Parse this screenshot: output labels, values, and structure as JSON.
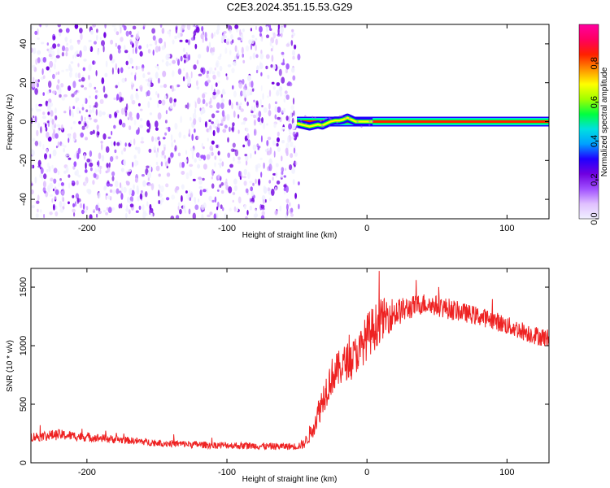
{
  "title": "C2E3.2024.351.15.53.G29",
  "colors": {
    "colormap": [
      "#f0f0ff",
      "#e0c0ff",
      "#a050ff",
      "#7000e0",
      "#2000ff",
      "#00a0ff",
      "#00e0e0",
      "#00ff40",
      "#a0ff00",
      "#ffff00",
      "#ff9000",
      "#ff2000",
      "#ff0060",
      "#ff00a0"
    ],
    "snr_line": "#ee2222",
    "frame": "#000000"
  },
  "chart_data": [
    {
      "type": "heatmap",
      "title": "",
      "xlabel": "Height of straight line (km)",
      "ylabel": "Frequency (Hz)",
      "xlim": [
        -240,
        130
      ],
      "ylim": [
        -50,
        50
      ],
      "x_ticks": [
        -200,
        -100,
        0,
        100
      ],
      "x_tick_labels": [
        "-200",
        "-100",
        "0",
        "100"
      ],
      "y_ticks": [
        -40,
        -20,
        0,
        20,
        40
      ],
      "y_tick_labels": [
        "-40",
        "-20",
        "0",
        "20",
        "40"
      ],
      "grid": false,
      "noise_region_x": [
        -240,
        -52
      ],
      "tone_frequency_hz": 0,
      "tone_start_x": -50,
      "track": {
        "x": [
          -50,
          -47,
          -44,
          -41,
          -38,
          -35,
          -32,
          -29,
          -26,
          -23,
          -20,
          -17,
          -14,
          -11,
          -8,
          -5,
          -2,
          1,
          4
        ],
        "y": [
          -1,
          -1.5,
          -2,
          -2.5,
          -2,
          -1.5,
          -2,
          -1,
          0,
          0.5,
          0.5,
          1,
          2,
          1,
          0,
          0,
          0,
          0,
          0
        ]
      },
      "colorbar": {
        "label": "Normalized spectral amplitude",
        "range": [
          0,
          1
        ],
        "ticks": [
          0.0,
          0.2,
          0.4,
          0.6,
          0.8
        ],
        "tick_labels": [
          "0.0",
          "0.2",
          "0.4",
          "0.6",
          "0.8"
        ]
      }
    },
    {
      "type": "line",
      "title": "",
      "xlabel": "Height of straight line (km)",
      "ylabel": "SNR (10 * v/v)",
      "xlim": [
        -240,
        130
      ],
      "ylim": [
        0,
        1660
      ],
      "x_ticks": [
        -200,
        -100,
        0,
        100
      ],
      "x_tick_labels": [
        "-200",
        "-100",
        "0",
        "100"
      ],
      "y_ticks": [
        0,
        500,
        1000,
        1500
      ],
      "y_tick_labels": [
        "0",
        "500",
        "1000",
        "1500"
      ],
      "grid": false,
      "series": [
        {
          "x": [
            -240,
            -230,
            -220,
            -210,
            -200,
            -190,
            -180,
            -170,
            -160,
            -150,
            -140,
            -130,
            -120,
            -110,
            -100,
            -90,
            -80,
            -70,
            -60,
            -50,
            -45,
            -40,
            -35,
            -30,
            -25,
            -20,
            -15,
            -10,
            -5,
            0,
            5,
            10,
            15,
            20,
            25,
            30,
            40,
            50,
            60,
            70,
            80,
            90,
            100,
            110,
            120,
            130
          ],
          "y": [
            220,
            230,
            240,
            230,
            220,
            210,
            200,
            190,
            180,
            170,
            165,
            160,
            155,
            150,
            150,
            145,
            145,
            140,
            140,
            140,
            160,
            260,
            420,
            600,
            740,
            800,
            860,
            900,
            960,
            1080,
            1150,
            1220,
            1260,
            1280,
            1300,
            1320,
            1360,
            1340,
            1310,
            1280,
            1250,
            1220,
            1170,
            1130,
            1090,
            1060
          ],
          "noise_amplitude": [
            40,
            45,
            45,
            40,
            40,
            35,
            35,
            30,
            30,
            30,
            30,
            30,
            30,
            30,
            30,
            30,
            30,
            30,
            30,
            30,
            40,
            80,
            120,
            150,
            160,
            160,
            160,
            160,
            170,
            200,
            200,
            180,
            160,
            130,
            110,
            100,
            90,
            90,
            90,
            80,
            80,
            80,
            80,
            80,
            80,
            80
          ]
        }
      ]
    }
  ]
}
